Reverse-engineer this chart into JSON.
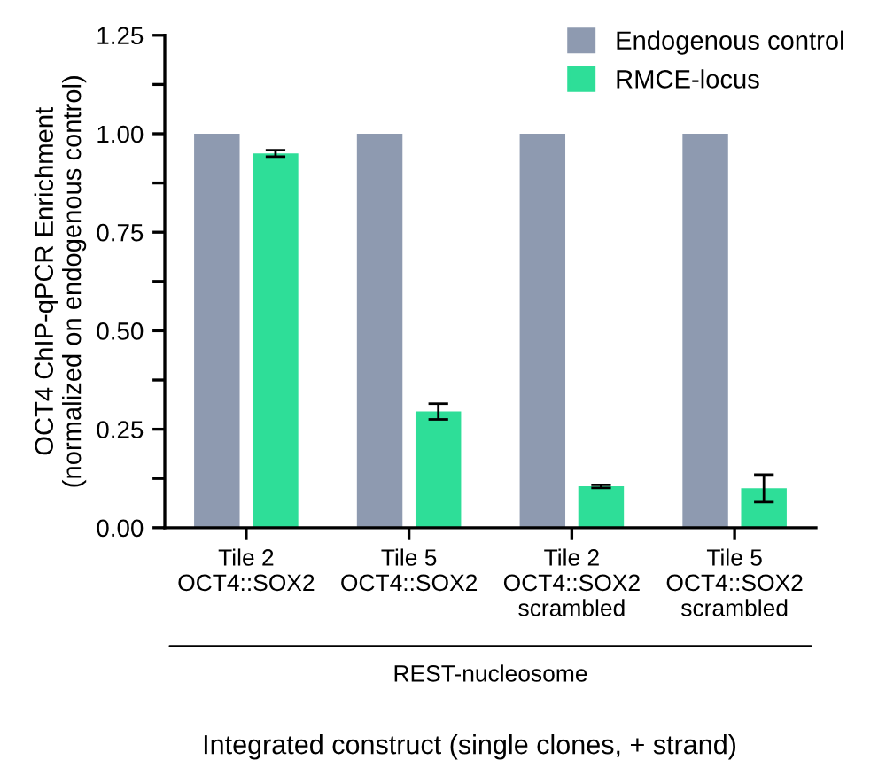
{
  "chart_data": {
    "type": "bar",
    "categories": [
      "Tile 2\nOCT4::SOX2",
      "Tile 5\nOCT4::SOX2",
      "Tile 2\nOCT4::SOX2\nscrambled",
      "Tile 5\nOCT4::SOX2\nscrambled"
    ],
    "series": [
      {
        "name": "Endogenous control",
        "color": "#8e9ab0",
        "values": [
          1.0,
          1.0,
          1.0,
          1.0
        ]
      },
      {
        "name": "RMCE-locus",
        "color": "#2ede98",
        "values": [
          0.95,
          0.295,
          0.105,
          0.1
        ],
        "errors": [
          0.008,
          0.02,
          0.004,
          0.035
        ]
      }
    ],
    "ylabel": "OCT4 ChIP-qPCR Enrichment\n(normalized on endogenous control)",
    "xlabel": "Integrated construct (single clones, + strand)",
    "annotations": [
      "REST-nucleosome"
    ],
    "ylim": [
      0,
      1.25
    ],
    "yticks": [
      {
        "value": 0,
        "label": "0.00"
      },
      {
        "value": 0.125,
        "label": null
      },
      {
        "value": 0.25,
        "label": "0.25"
      },
      {
        "value": 0.375,
        "label": null
      },
      {
        "value": 0.5,
        "label": "0.50"
      },
      {
        "value": 0.625,
        "label": null
      },
      {
        "value": 0.75,
        "label": "0.75"
      },
      {
        "value": 0.875,
        "label": null
      },
      {
        "value": 1.0,
        "label": "1.00"
      },
      {
        "value": 1.125,
        "label": null
      },
      {
        "value": 1.25,
        "label": "1.25"
      }
    ],
    "legend": "top right",
    "grid": false
  }
}
